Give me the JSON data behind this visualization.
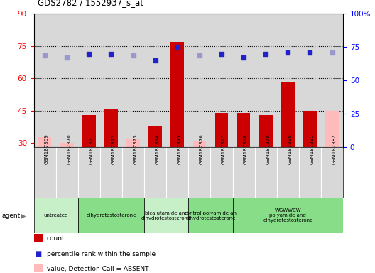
{
  "title": "GDS2782 / 1552937_s_at",
  "samples": [
    "GSM187369",
    "GSM187370",
    "GSM187371",
    "GSM187372",
    "GSM187373",
    "GSM187374",
    "GSM187375",
    "GSM187376",
    "GSM187377",
    "GSM187378",
    "GSM187379",
    "GSM187380",
    "GSM187381",
    "GSM187382"
  ],
  "count_values": [
    null,
    null,
    43,
    46,
    null,
    38,
    77,
    null,
    44,
    44,
    43,
    58,
    45,
    null
  ],
  "count_absent_values": [
    33,
    30,
    null,
    null,
    32,
    null,
    null,
    31,
    null,
    null,
    null,
    null,
    null,
    45
  ],
  "count_is_absent": [
    true,
    true,
    false,
    false,
    true,
    false,
    false,
    true,
    false,
    false,
    false,
    false,
    false,
    true
  ],
  "rank_values": [
    69,
    67,
    70,
    70,
    69,
    65,
    75,
    69,
    70,
    67,
    70,
    71,
    71,
    71
  ],
  "agent_groups": [
    {
      "label": "untreated",
      "start": 0,
      "end": 2,
      "color": "#c8f0c8"
    },
    {
      "label": "dihydrotestosterone",
      "start": 2,
      "end": 5,
      "color": "#88dd88"
    },
    {
      "label": "bicalutamide and\ndihydrotestosterone",
      "start": 5,
      "end": 7,
      "color": "#c8f0c8"
    },
    {
      "label": "control polyamide an\ndihydrotestosterone",
      "start": 7,
      "end": 9,
      "color": "#88dd88"
    },
    {
      "label": "WGWWCW\npolyamide and\ndihydrotestosterone",
      "start": 9,
      "end": 14,
      "color": "#88dd88"
    }
  ],
  "ylim_left": [
    28,
    90
  ],
  "ylim_right": [
    0,
    100
  ],
  "yticks_left": [
    30,
    45,
    60,
    75,
    90
  ],
  "yticks_right": [
    0,
    25,
    50,
    75,
    100
  ],
  "dotted_lines": [
    45,
    60,
    75
  ],
  "bar_color": "#cc0000",
  "absent_bar_color": "#ffbbbb",
  "rank_color": "#2222cc",
  "rank_absent_color": "#9999cc",
  "bg_color": "#d8d8d8",
  "white_bg": "#ffffff"
}
